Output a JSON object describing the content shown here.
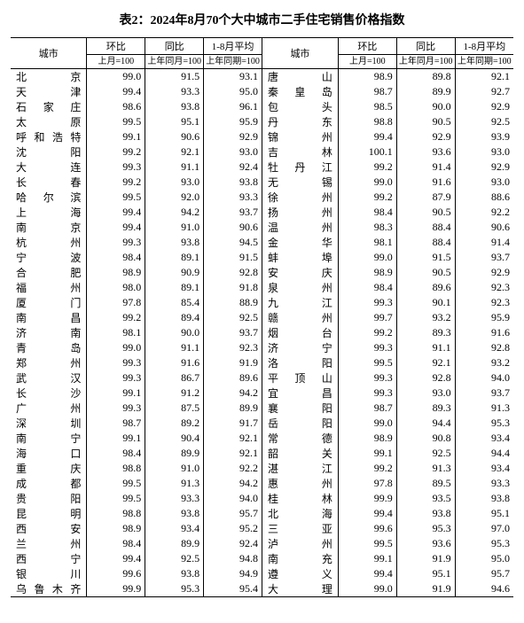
{
  "title": "表2：2024年8月70个大中城市二手住宅销售价格指数",
  "headers": {
    "city": "城市",
    "mom_group": "环比",
    "yoy_group": "同比",
    "avg_group": "1-8月平均",
    "mom_sub": "上月=100",
    "yoy_sub": "上年同月=100",
    "avg_sub": "上年同期=100"
  },
  "left": [
    {
      "city": "北京",
      "mom": "99.0",
      "yoy": "91.5",
      "avg": "93.1"
    },
    {
      "city": "天津",
      "mom": "99.4",
      "yoy": "93.3",
      "avg": "95.0"
    },
    {
      "city": "石家庄",
      "mom": "98.6",
      "yoy": "93.8",
      "avg": "96.1"
    },
    {
      "city": "太原",
      "mom": "99.5",
      "yoy": "95.1",
      "avg": "95.9"
    },
    {
      "city": "呼和浩特",
      "mom": "99.1",
      "yoy": "90.6",
      "avg": "92.9"
    },
    {
      "city": "沈阳",
      "mom": "99.2",
      "yoy": "92.1",
      "avg": "93.0"
    },
    {
      "city": "大连",
      "mom": "99.3",
      "yoy": "91.1",
      "avg": "92.4"
    },
    {
      "city": "长春",
      "mom": "99.2",
      "yoy": "93.0",
      "avg": "93.8"
    },
    {
      "city": "哈尔滨",
      "mom": "99.5",
      "yoy": "92.0",
      "avg": "93.3"
    },
    {
      "city": "上海",
      "mom": "99.4",
      "yoy": "94.2",
      "avg": "93.7"
    },
    {
      "city": "南京",
      "mom": "99.4",
      "yoy": "91.0",
      "avg": "90.6"
    },
    {
      "city": "杭州",
      "mom": "99.3",
      "yoy": "93.8",
      "avg": "94.5"
    },
    {
      "city": "宁波",
      "mom": "98.4",
      "yoy": "89.1",
      "avg": "91.5"
    },
    {
      "city": "合肥",
      "mom": "98.9",
      "yoy": "90.9",
      "avg": "92.8"
    },
    {
      "city": "福州",
      "mom": "98.0",
      "yoy": "89.1",
      "avg": "91.8"
    },
    {
      "city": "厦门",
      "mom": "97.8",
      "yoy": "85.4",
      "avg": "88.9"
    },
    {
      "city": "南昌",
      "mom": "99.2",
      "yoy": "89.4",
      "avg": "92.5"
    },
    {
      "city": "济南",
      "mom": "98.1",
      "yoy": "90.0",
      "avg": "93.7"
    },
    {
      "city": "青岛",
      "mom": "99.0",
      "yoy": "91.1",
      "avg": "92.3"
    },
    {
      "city": "郑州",
      "mom": "99.3",
      "yoy": "91.6",
      "avg": "91.9"
    },
    {
      "city": "武汉",
      "mom": "99.3",
      "yoy": "86.7",
      "avg": "89.6"
    },
    {
      "city": "长沙",
      "mom": "99.1",
      "yoy": "91.2",
      "avg": "94.2"
    },
    {
      "city": "广州",
      "mom": "99.3",
      "yoy": "87.5",
      "avg": "89.9"
    },
    {
      "city": "深圳",
      "mom": "98.7",
      "yoy": "89.2",
      "avg": "91.7"
    },
    {
      "city": "南宁",
      "mom": "99.1",
      "yoy": "90.4",
      "avg": "92.1"
    },
    {
      "city": "海口",
      "mom": "98.4",
      "yoy": "89.9",
      "avg": "92.1"
    },
    {
      "city": "重庆",
      "mom": "98.8",
      "yoy": "91.0",
      "avg": "92.2"
    },
    {
      "city": "成都",
      "mom": "99.5",
      "yoy": "91.3",
      "avg": "94.2"
    },
    {
      "city": "贵阳",
      "mom": "99.5",
      "yoy": "93.3",
      "avg": "94.0"
    },
    {
      "city": "昆明",
      "mom": "98.8",
      "yoy": "93.8",
      "avg": "95.7"
    },
    {
      "city": "西安",
      "mom": "98.9",
      "yoy": "93.4",
      "avg": "95.2"
    },
    {
      "city": "兰州",
      "mom": "98.4",
      "yoy": "89.9",
      "avg": "92.4"
    },
    {
      "city": "西宁",
      "mom": "99.4",
      "yoy": "92.5",
      "avg": "94.8"
    },
    {
      "city": "银川",
      "mom": "99.6",
      "yoy": "93.8",
      "avg": "94.9"
    },
    {
      "city": "乌鲁木齐",
      "mom": "99.9",
      "yoy": "95.3",
      "avg": "95.4"
    }
  ],
  "right": [
    {
      "city": "唐山",
      "mom": "98.9",
      "yoy": "89.8",
      "avg": "92.1"
    },
    {
      "city": "秦皇岛",
      "mom": "98.7",
      "yoy": "89.9",
      "avg": "92.7"
    },
    {
      "city": "包头",
      "mom": "98.5",
      "yoy": "90.0",
      "avg": "92.9"
    },
    {
      "city": "丹东",
      "mom": "98.8",
      "yoy": "90.5",
      "avg": "92.5"
    },
    {
      "city": "锦州",
      "mom": "99.4",
      "yoy": "92.9",
      "avg": "93.9"
    },
    {
      "city": "吉林",
      "mom": "100.1",
      "yoy": "93.6",
      "avg": "93.0"
    },
    {
      "city": "牡丹江",
      "mom": "99.2",
      "yoy": "91.4",
      "avg": "92.9"
    },
    {
      "city": "无锡",
      "mom": "99.0",
      "yoy": "91.6",
      "avg": "93.0"
    },
    {
      "city": "徐州",
      "mom": "99.2",
      "yoy": "87.9",
      "avg": "88.6"
    },
    {
      "city": "扬州",
      "mom": "98.4",
      "yoy": "90.5",
      "avg": "92.2"
    },
    {
      "city": "温州",
      "mom": "98.3",
      "yoy": "88.4",
      "avg": "90.6"
    },
    {
      "city": "金华",
      "mom": "98.1",
      "yoy": "88.4",
      "avg": "91.4"
    },
    {
      "city": "蚌埠",
      "mom": "99.0",
      "yoy": "91.5",
      "avg": "93.7"
    },
    {
      "city": "安庆",
      "mom": "98.9",
      "yoy": "90.5",
      "avg": "92.9"
    },
    {
      "city": "泉州",
      "mom": "98.4",
      "yoy": "89.6",
      "avg": "92.3"
    },
    {
      "city": "九江",
      "mom": "99.3",
      "yoy": "90.1",
      "avg": "92.3"
    },
    {
      "city": "赣州",
      "mom": "99.7",
      "yoy": "93.2",
      "avg": "95.9"
    },
    {
      "city": "烟台",
      "mom": "99.2",
      "yoy": "89.3",
      "avg": "91.6"
    },
    {
      "city": "济宁",
      "mom": "99.3",
      "yoy": "91.1",
      "avg": "92.8"
    },
    {
      "city": "洛阳",
      "mom": "99.5",
      "yoy": "92.1",
      "avg": "93.2"
    },
    {
      "city": "平顶山",
      "mom": "99.3",
      "yoy": "92.8",
      "avg": "94.0"
    },
    {
      "city": "宜昌",
      "mom": "99.3",
      "yoy": "93.0",
      "avg": "93.7"
    },
    {
      "city": "襄阳",
      "mom": "98.7",
      "yoy": "89.3",
      "avg": "91.3"
    },
    {
      "city": "岳阳",
      "mom": "99.0",
      "yoy": "94.4",
      "avg": "95.3"
    },
    {
      "city": "常德",
      "mom": "98.9",
      "yoy": "90.8",
      "avg": "93.4"
    },
    {
      "city": "韶关",
      "mom": "99.1",
      "yoy": "92.5",
      "avg": "94.4"
    },
    {
      "city": "湛江",
      "mom": "99.2",
      "yoy": "91.3",
      "avg": "93.4"
    },
    {
      "city": "惠州",
      "mom": "97.8",
      "yoy": "89.5",
      "avg": "93.3"
    },
    {
      "city": "桂林",
      "mom": "99.9",
      "yoy": "93.5",
      "avg": "93.8"
    },
    {
      "city": "北海",
      "mom": "99.4",
      "yoy": "93.8",
      "avg": "95.1"
    },
    {
      "city": "三亚",
      "mom": "99.6",
      "yoy": "95.3",
      "avg": "97.0"
    },
    {
      "city": "泸州",
      "mom": "99.5",
      "yoy": "93.6",
      "avg": "95.3"
    },
    {
      "city": "南充",
      "mom": "99.1",
      "yoy": "91.9",
      "avg": "95.0"
    },
    {
      "city": "遵义",
      "mom": "99.4",
      "yoy": "95.1",
      "avg": "95.7"
    },
    {
      "city": "大理",
      "mom": "99.0",
      "yoy": "91.9",
      "avg": "94.6"
    }
  ],
  "colors": {
    "text": "#000000",
    "background": "#ffffff",
    "border": "#000000"
  },
  "fonts": {
    "title_size_pt": 14,
    "body_size_pt": 12,
    "family": "SimSun"
  }
}
